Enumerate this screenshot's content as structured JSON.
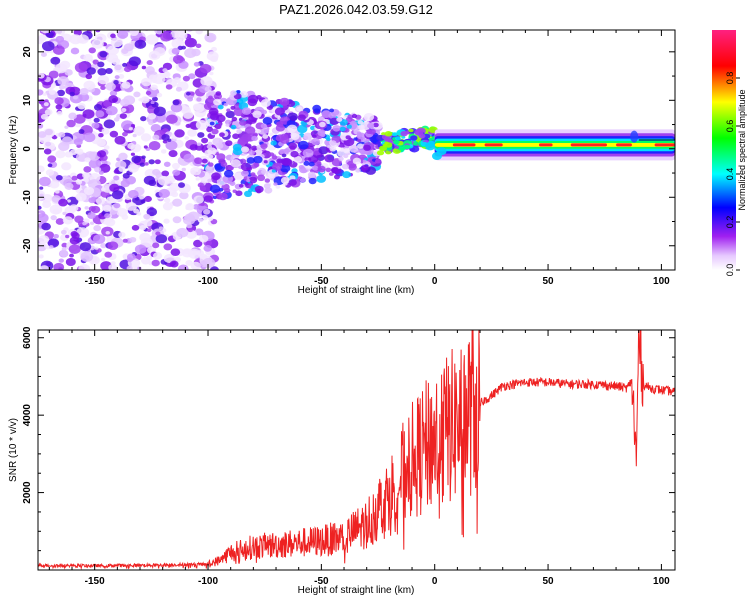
{
  "title": "PAZ1.2026.042.03.59.G12",
  "chart_data": [
    {
      "type": "heatmap",
      "xlabel": "Height of straight line (km)",
      "ylabel": "Frequency (Hz)",
      "xlim": [
        -175,
        106
      ],
      "ylim": [
        -25,
        24.5
      ],
      "xticks": [
        -150,
        -100,
        -50,
        0,
        50,
        100
      ],
      "yticks": [
        -20,
        -10,
        0,
        10,
        20
      ],
      "colorbar": {
        "label": "Normalized spectral amplitude",
        "range": [
          0,
          1
        ],
        "ticks": [
          "0.0",
          "0.2",
          "0.4",
          "0.6",
          "0.8"
        ],
        "colors": [
          "#ffffff",
          "#a020f0",
          "#0000ff",
          "#00ffff",
          "#00ff00",
          "#ffff00",
          "#ff0000",
          "#ff00ff"
        ]
      },
      "description_regions": [
        {
          "x_range": [
            -175,
            -100
          ],
          "freq_range": [
            -25,
            24.5
          ],
          "amplitude": 0.2
        },
        {
          "x_range": [
            -100,
            -25
          ],
          "freq_range": [
            -12,
            10
          ],
          "amplitude": 0.25
        },
        {
          "x_range": [
            -25,
            0
          ],
          "freq_range": [
            -2,
            3
          ],
          "amplitude": 0.5
        },
        {
          "x_range": [
            0,
            106
          ],
          "freq_range": [
            -1,
            2
          ],
          "amplitude": 0.9
        }
      ]
    },
    {
      "type": "line",
      "xlabel": "Height of straight line (km)",
      "ylabel": "SNR (10 * v/v)",
      "xlim": [
        -175,
        106
      ],
      "ylim": [
        0,
        6200
      ],
      "xticks": [
        -150,
        -100,
        -50,
        0,
        50,
        100
      ],
      "yticks": [
        2000,
        4000,
        6000
      ],
      "color": "#ee2222",
      "series": [
        {
          "name": "SNR",
          "x": [
            -175,
            -150,
            -120,
            -100,
            -95,
            -90,
            -80,
            -70,
            -60,
            -50,
            -40,
            -30,
            -25,
            -20,
            -15,
            -10,
            -5,
            0,
            5,
            10,
            15,
            20,
            25,
            30,
            40,
            50,
            60,
            70,
            80,
            85,
            87,
            89,
            90,
            92,
            95,
            100,
            106
          ],
          "values": [
            120,
            110,
            130,
            150,
            250,
            450,
            600,
            650,
            700,
            750,
            850,
            1200,
            1600,
            1900,
            2400,
            2800,
            3100,
            3400,
            3600,
            3800,
            4100,
            4300,
            4500,
            4750,
            4850,
            4850,
            4800,
            4800,
            4750,
            4700,
            4900,
            2700,
            6100,
            4800,
            4700,
            4650,
            4600
          ]
        }
      ]
    }
  ]
}
